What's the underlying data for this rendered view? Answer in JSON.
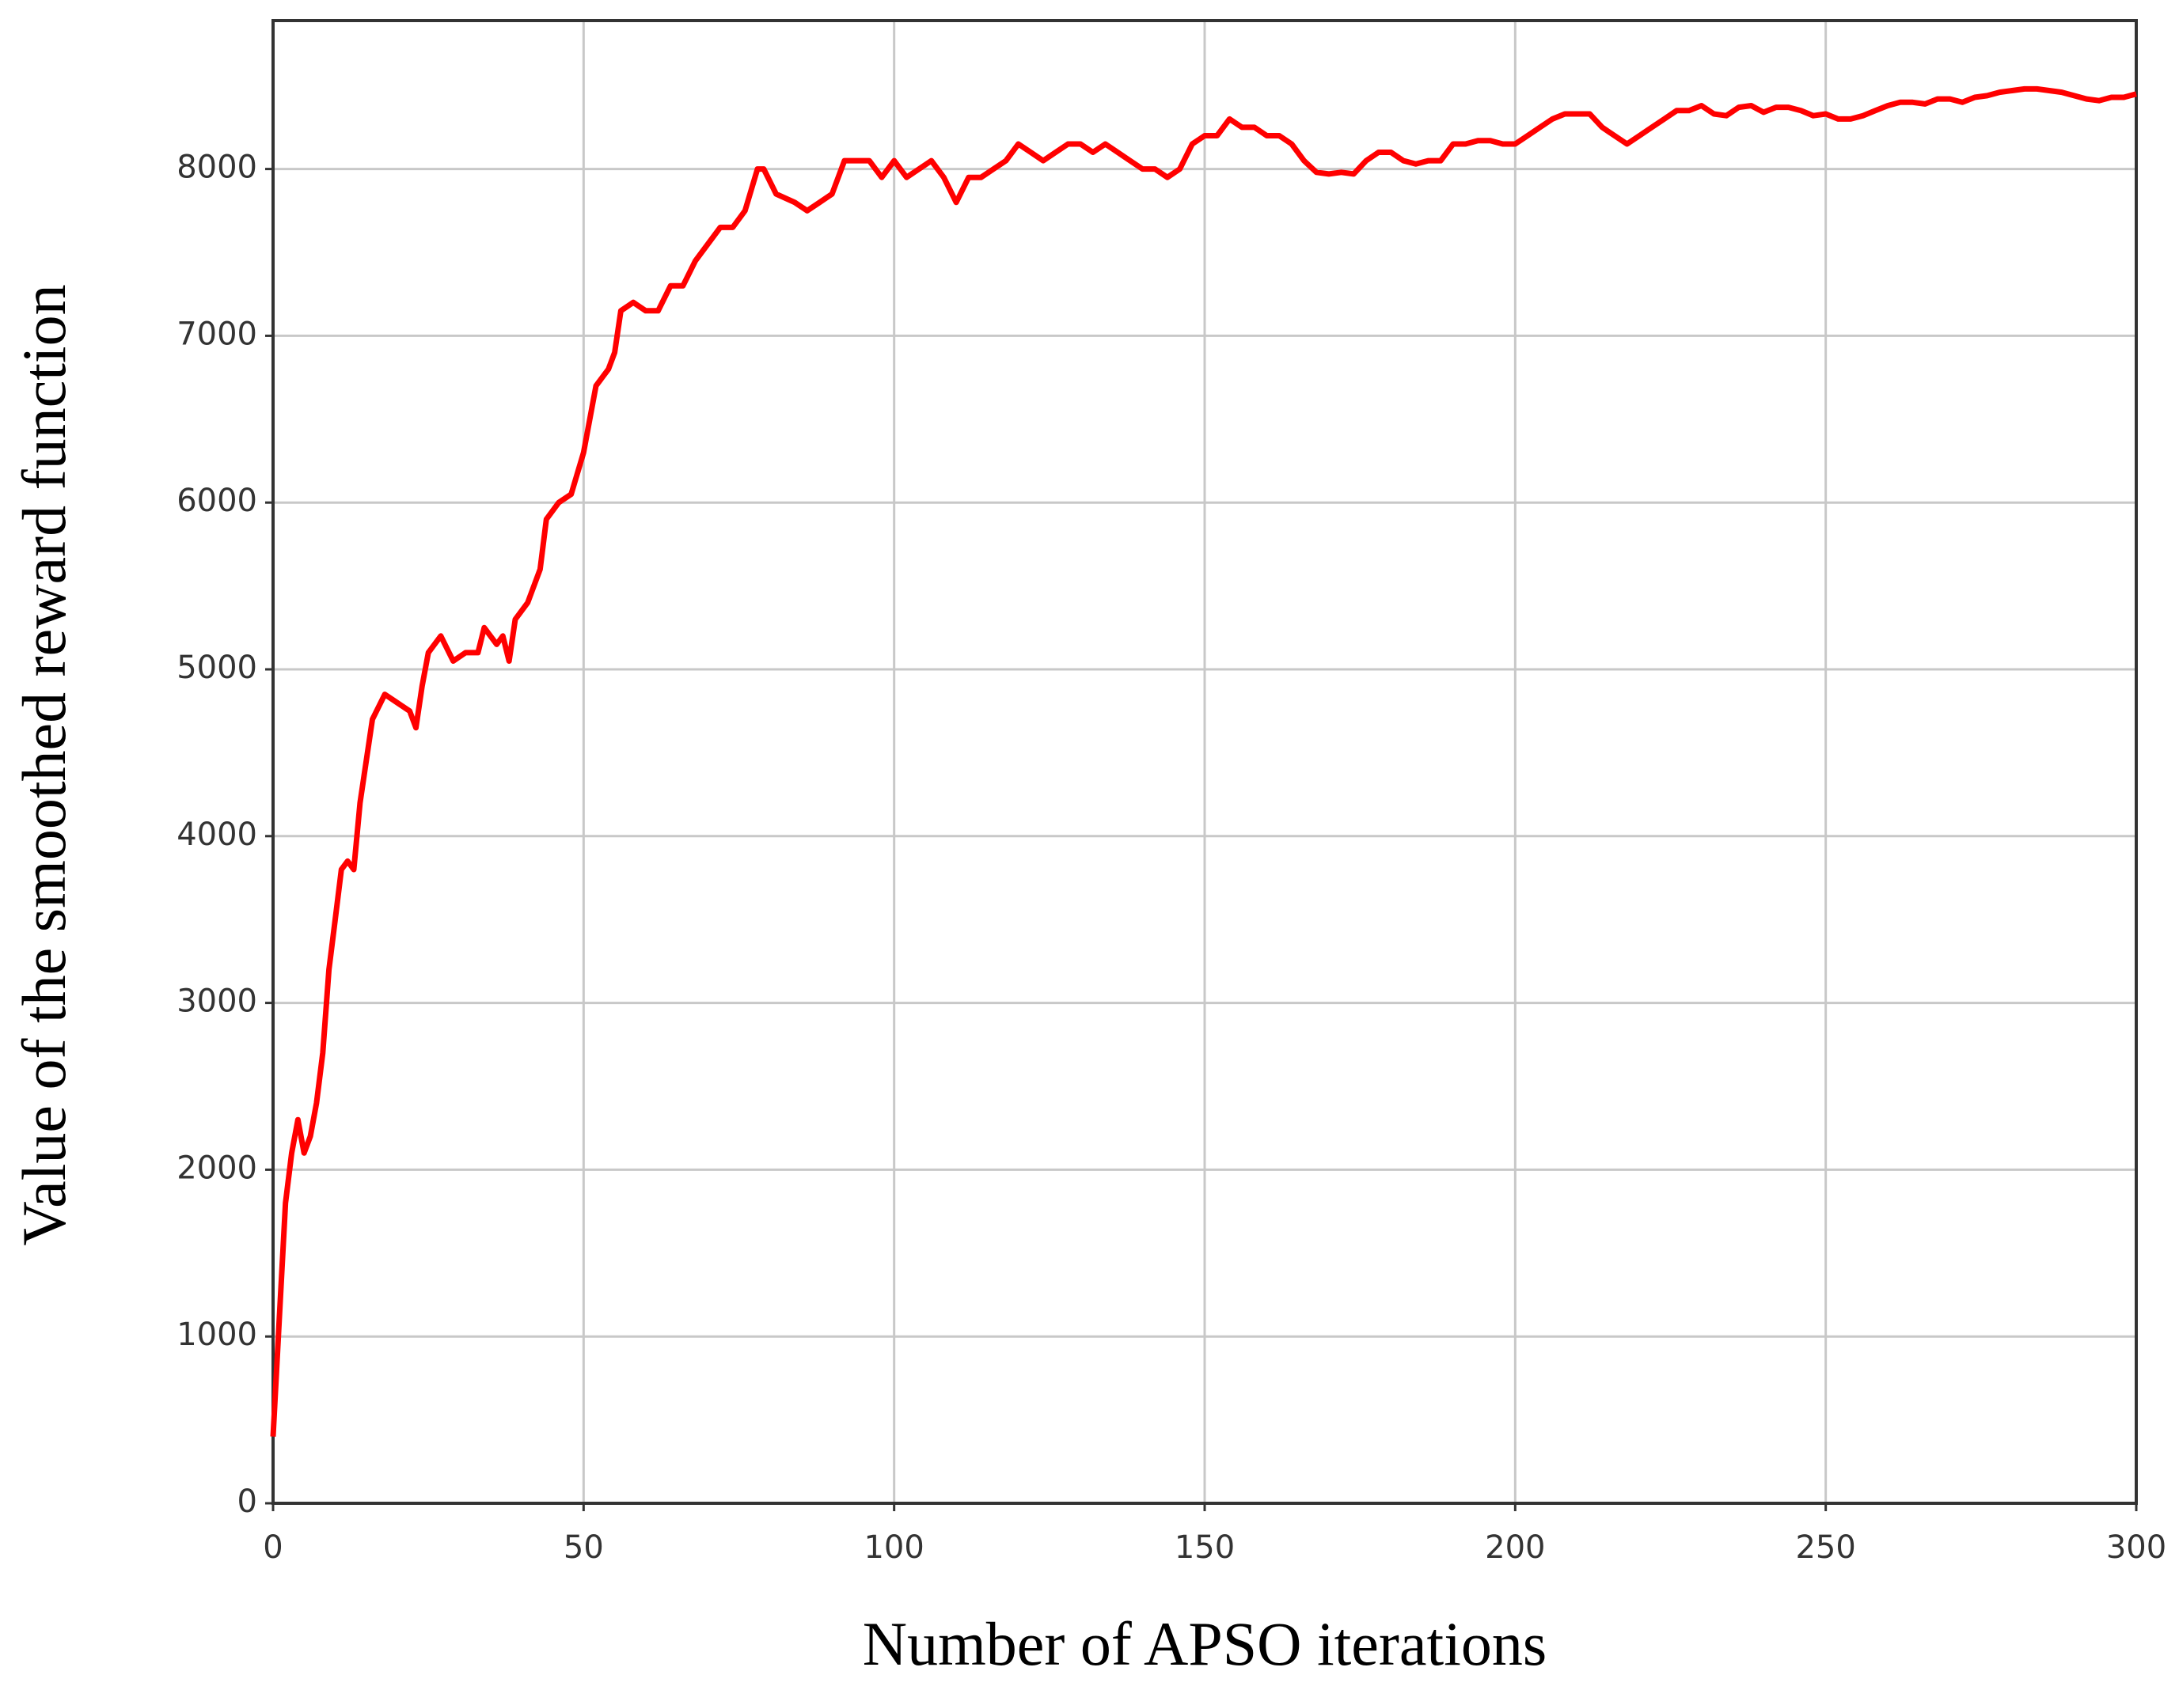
{
  "chart_data": {
    "type": "line",
    "xlabel": "Number of APSO iterations",
    "ylabel": "Value of the smoothed reward function",
    "x": [
      0,
      1,
      2,
      3,
      4,
      5,
      6,
      7,
      8,
      9,
      10,
      11,
      12,
      13,
      14,
      16,
      18,
      20,
      22,
      23,
      24,
      25,
      27,
      29,
      31,
      33,
      34,
      36,
      37,
      38,
      39,
      41,
      43,
      44,
      46,
      48,
      50,
      52,
      54,
      55,
      56,
      58,
      60,
      62,
      64,
      66,
      68,
      70,
      72,
      74,
      76,
      78,
      79,
      81,
      84,
      86,
      88,
      90,
      92,
      94,
      96,
      98,
      100,
      102,
      104,
      106,
      108,
      110,
      112,
      114,
      116,
      118,
      120,
      122,
      124,
      126,
      128,
      130,
      132,
      134,
      136,
      138,
      140,
      142,
      144,
      146,
      148,
      150,
      152,
      154,
      156,
      158,
      160,
      162,
      164,
      166,
      168,
      170,
      172,
      174,
      176,
      178,
      180,
      182,
      184,
      186,
      188,
      190,
      192,
      194,
      196,
      198,
      200,
      202,
      204,
      206,
      208,
      210,
      212,
      214,
      216,
      218,
      220,
      222,
      224,
      226,
      228,
      230,
      232,
      234,
      236,
      238,
      240,
      242,
      244,
      246,
      248,
      250,
      252,
      254,
      256,
      258,
      260,
      262,
      264,
      266,
      268,
      270,
      272,
      274,
      276,
      278,
      280,
      282,
      284,
      286,
      288,
      290,
      292,
      294,
      296,
      298,
      300
    ],
    "values": [
      400,
      1100,
      1800,
      2100,
      2300,
      2100,
      2200,
      2400,
      2700,
      3200,
      3500,
      3800,
      3850,
      3800,
      4200,
      4700,
      4850,
      4800,
      4750,
      4650,
      4900,
      5100,
      5200,
      5050,
      5100,
      5100,
      5250,
      5150,
      5200,
      5050,
      5300,
      5400,
      5600,
      5900,
      6000,
      6050,
      6300,
      6700,
      6800,
      6900,
      7150,
      7200,
      7150,
      7150,
      7300,
      7300,
      7450,
      7550,
      7650,
      7650,
      7750,
      8000,
      8000,
      7850,
      7800,
      7750,
      7800,
      7850,
      8050,
      8050,
      8050,
      7950,
      8050,
      7950,
      8000,
      8050,
      7950,
      7800,
      7950,
      7950,
      8000,
      8050,
      8150,
      8100,
      8050,
      8100,
      8150,
      8150,
      8100,
      8150,
      8100,
      8050,
      8000,
      8000,
      7950,
      8000,
      8150,
      8200,
      8200,
      8300,
      8250,
      8250,
      8200,
      8200,
      8150,
      8050,
      7980,
      7970,
      7980,
      7970,
      8050,
      8100,
      8100,
      8050,
      8030,
      8050,
      8050,
      8150,
      8150,
      8170,
      8170,
      8150,
      8150,
      8200,
      8250,
      8300,
      8330,
      8330,
      8330,
      8250,
      8200,
      8150,
      8200,
      8250,
      8300,
      8350,
      8350,
      8380,
      8330,
      8320,
      8370,
      8380,
      8340,
      8370,
      8370,
      8350,
      8320,
      8330,
      8300,
      8300,
      8320,
      8350,
      8380,
      8400,
      8400,
      8390,
      8420,
      8420,
      8400,
      8430,
      8440,
      8460,
      8470,
      8480,
      8480,
      8470,
      8460,
      8440,
      8420,
      8410,
      8430,
      8430,
      8450
    ],
    "color": "#ff0000",
    "xlim": [
      0,
      300
    ],
    "xticks": [
      0,
      50,
      100,
      150,
      200,
      250,
      300
    ],
    "ylim": [
      0,
      8890
    ],
    "yticks": [
      0,
      1000,
      2000,
      3000,
      4000,
      5000,
      6000,
      7000,
      8000
    ],
    "grid": true
  }
}
